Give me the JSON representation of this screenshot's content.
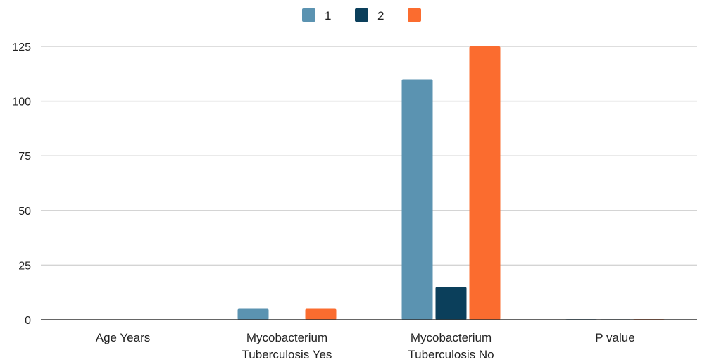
{
  "chart_data": {
    "type": "bar",
    "categories": [
      [
        "Age Years"
      ],
      [
        "Mycobacterium",
        "Tuberculosis Yes"
      ],
      [
        "Mycobacterium",
        "Tuberculosis No"
      ],
      [
        "P value"
      ]
    ],
    "series": [
      {
        "name": "1",
        "color": "#5b93b1",
        "values": [
          0.1,
          5,
          110,
          0.3
        ]
      },
      {
        "name": "2",
        "color": "#0b3f5b",
        "values": [
          0.1,
          0,
          15,
          0.2
        ]
      },
      {
        "name": "",
        "color": "#fb6c2f",
        "values": [
          0.1,
          5,
          125,
          0.3
        ]
      }
    ],
    "yticks": [
      0,
      25,
      50,
      75,
      100,
      125
    ],
    "ylim": [
      0,
      125
    ],
    "grid": true,
    "legend_position": "top-center"
  }
}
